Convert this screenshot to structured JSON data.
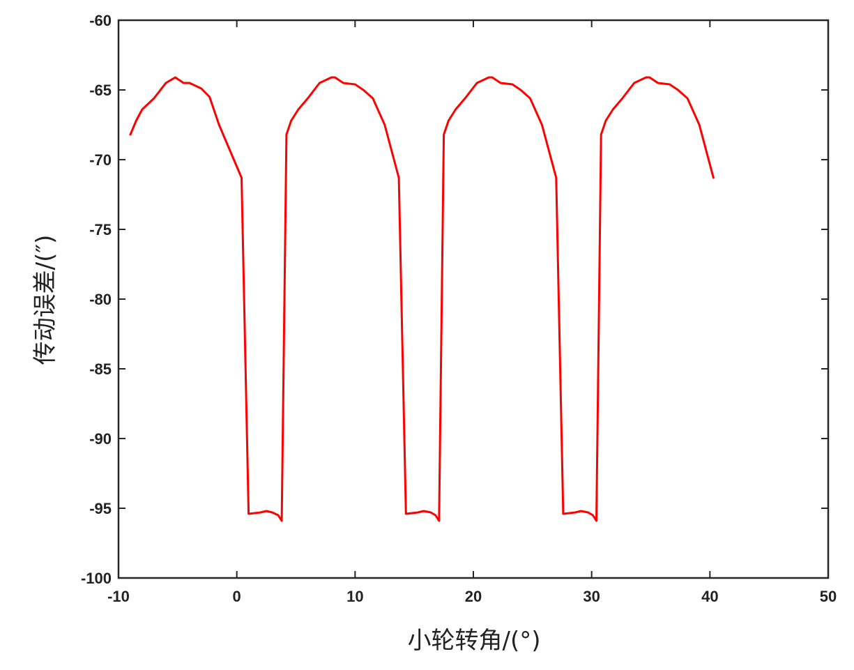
{
  "chart_data": {
    "type": "line",
    "title": "",
    "xlabel": "小轮转角/(°)",
    "ylabel": "传动误差/(″)",
    "xlim": [
      -10,
      50
    ],
    "ylim": [
      -100,
      -60
    ],
    "xticks": [
      -10,
      0,
      10,
      20,
      30,
      40,
      50
    ],
    "yticks": [
      -60,
      -65,
      -70,
      -75,
      -80,
      -85,
      -90,
      -95,
      -100
    ],
    "grid": false,
    "legend": "none",
    "series": [
      {
        "color": "#ff0000",
        "x": [
          -9.0,
          -8.5,
          -8.0,
          -7.0,
          -6.0,
          -5.2,
          -4.5,
          -4.0,
          -3.0,
          -2.3,
          -1.5,
          -0.5,
          0.4,
          1.0,
          2.0,
          2.5,
          3.0,
          3.5,
          3.8,
          4.2,
          4.6,
          5.2,
          6.0,
          7.0,
          8.0,
          8.3,
          9.0,
          10.0,
          10.7,
          11.5,
          12.5,
          13.7,
          14.3,
          15.3,
          15.8,
          16.4,
          16.8,
          17.1,
          17.5,
          17.9,
          18.5,
          19.3,
          20.3,
          21.3,
          21.6,
          22.3,
          23.3,
          24.0,
          24.8,
          25.8,
          27.0,
          27.6,
          28.6,
          29.1,
          29.7,
          30.1,
          30.4,
          30.8,
          31.2,
          31.8,
          32.6,
          33.6,
          34.6,
          34.9,
          35.6,
          36.6,
          37.3,
          38.1,
          39.1,
          40.3
        ],
        "y": [
          -68.2,
          -67.2,
          -66.4,
          -65.6,
          -64.5,
          -64.1,
          -64.5,
          -64.5,
          -64.9,
          -65.5,
          -67.5,
          -69.5,
          -71.3,
          -95.4,
          -95.3,
          -95.2,
          -95.3,
          -95.5,
          -95.9,
          -68.2,
          -67.2,
          -66.4,
          -65.6,
          -64.5,
          -64.1,
          -64.1,
          -64.5,
          -64.6,
          -65.0,
          -65.6,
          -67.5,
          -71.3,
          -95.4,
          -95.3,
          -95.2,
          -95.3,
          -95.5,
          -95.9,
          -68.2,
          -67.2,
          -66.4,
          -65.6,
          -64.5,
          -64.1,
          -64.1,
          -64.5,
          -64.6,
          -65.0,
          -65.6,
          -67.5,
          -71.3,
          -95.4,
          -95.3,
          -95.2,
          -95.3,
          -95.5,
          -95.9,
          -68.2,
          -67.2,
          -66.4,
          -65.6,
          -64.5,
          -64.1,
          -64.1,
          -64.5,
          -64.6,
          -65.0,
          -65.6,
          -67.5,
          -71.3
        ]
      }
    ]
  }
}
